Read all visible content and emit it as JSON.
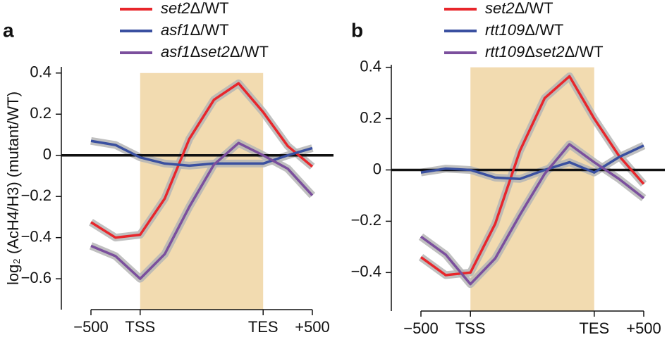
{
  "chart_data": [
    {
      "type": "line",
      "panel_label": "a",
      "ylabel": "log₂ (AcH4/H3) (mutant/WT)",
      "categories": [
        "−500",
        null,
        "TSS",
        null,
        null,
        null,
        null,
        "TES",
        null,
        "+500"
      ],
      "shaded_span": [
        "TSS",
        "TES"
      ],
      "shade_color": "#f2dbb0",
      "zero_line": true,
      "ylim": [
        -0.75,
        0.43
      ],
      "yticks": [
        {
          "value": -0.6,
          "label": "−0.6"
        },
        {
          "value": -0.4,
          "label": "−0.4"
        },
        {
          "value": -0.2,
          "label": "−0.2"
        },
        0,
        0.2,
        0.4
      ],
      "series": [
        {
          "name": "set2Δ/WT",
          "color": "#e8262b",
          "values": [
            -0.325,
            -0.4,
            -0.386,
            -0.21,
            0.08,
            0.27,
            0.35,
            0.21,
            0.045,
            -0.055
          ]
        },
        {
          "name": "asf1Δ/WT",
          "color": "#3a50a0",
          "values": [
            0.07,
            0.05,
            -0.01,
            -0.04,
            -0.05,
            -0.04,
            -0.04,
            -0.04,
            0,
            0.035
          ]
        },
        {
          "name": "asf1Δset2Δ/WT",
          "color": "#7b4f9d",
          "values": [
            -0.44,
            -0.49,
            -0.6,
            -0.48,
            -0.25,
            -0.045,
            0.06,
            0,
            -0.065,
            -0.195
          ]
        }
      ]
    },
    {
      "type": "line",
      "panel_label": "b",
      "categories": [
        "−500",
        null,
        "TSS",
        null,
        null,
        null,
        null,
        "TES",
        null,
        "+500"
      ],
      "shaded_span": [
        "TSS",
        "TES"
      ],
      "shade_color": "#f2dbb0",
      "zero_line": true,
      "ylim": [
        -0.55,
        0.41
      ],
      "yticks": [
        {
          "value": -0.4,
          "label": "−0.4"
        },
        {
          "value": -0.2,
          "label": "−0.2"
        },
        0,
        0.2,
        0.4
      ],
      "series": [
        {
          "name": "set2Δ/WT",
          "color": "#e8262b",
          "values": [
            -0.34,
            -0.41,
            -0.4,
            -0.21,
            0.075,
            0.28,
            0.365,
            0.2,
            0.055,
            -0.055
          ]
        },
        {
          "name": "rtt109Δ/WT",
          "color": "#3a50a0",
          "values": [
            -0.01,
            0.005,
            0,
            -0.03,
            -0.035,
            0,
            0.03,
            -0.01,
            0.05,
            0.095
          ]
        },
        {
          "name": "rtt109Δset2Δ/WT",
          "color": "#7b4f9d",
          "values": [
            -0.26,
            -0.33,
            -0.445,
            -0.345,
            -0.175,
            -0.015,
            0.1,
            0.03,
            -0.035,
            -0.11
          ]
        }
      ]
    }
  ]
}
